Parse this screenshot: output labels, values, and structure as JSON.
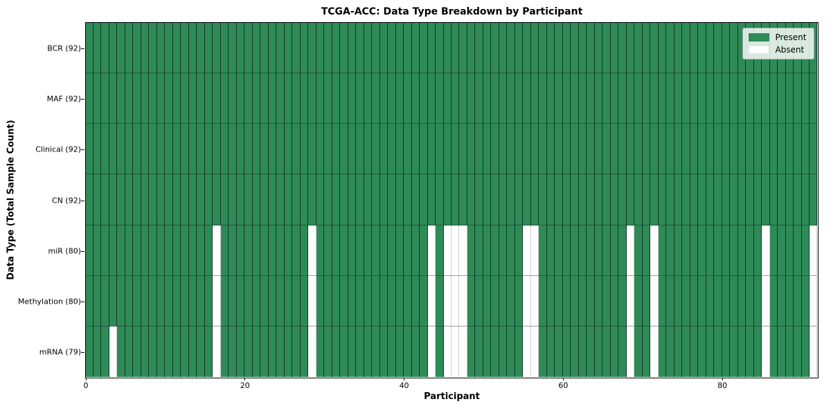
{
  "chart_data": {
    "type": "heatmap",
    "title": "TCGA-ACC: Data Type Breakdown by Participant",
    "xlabel": "Participant",
    "ylabel": "Data Type (Total Sample Count)",
    "n_participants": 92,
    "x_ticks": [
      0,
      20,
      40,
      60,
      80
    ],
    "xlim": [
      0,
      92
    ],
    "grid": false,
    "legend_position": "upper right",
    "rows": [
      {
        "label": "BCR (92)",
        "present_count": 92,
        "absent": []
      },
      {
        "label": "MAF (92)",
        "present_count": 92,
        "absent": []
      },
      {
        "label": "Clinical (92)",
        "present_count": 92,
        "absent": []
      },
      {
        "label": "CN (92)",
        "present_count": 92,
        "absent": []
      },
      {
        "label": "miR (80)",
        "present_count": 80,
        "absent": [
          16,
          28,
          43,
          45,
          46,
          47,
          55,
          56,
          68,
          71,
          85,
          91
        ]
      },
      {
        "label": "Methylation (80)",
        "present_count": 80,
        "absent": [
          16,
          28,
          43,
          45,
          46,
          47,
          55,
          56,
          68,
          71,
          85,
          91
        ]
      },
      {
        "label": "mRNA (79)",
        "present_count": 79,
        "absent": [
          3,
          16,
          28,
          43,
          45,
          46,
          47,
          55,
          56,
          68,
          71,
          85,
          91
        ]
      }
    ],
    "legend": [
      {
        "label": "Present",
        "color": "#2e8b57"
      },
      {
        "label": "Absent",
        "color": "#ffffff"
      }
    ],
    "colors": {
      "present": "#2e8b57",
      "absent": "#ffffff",
      "plot_border": "#000000",
      "cell_edge": "#14281e",
      "absent_edge": "#cccccc"
    }
  }
}
